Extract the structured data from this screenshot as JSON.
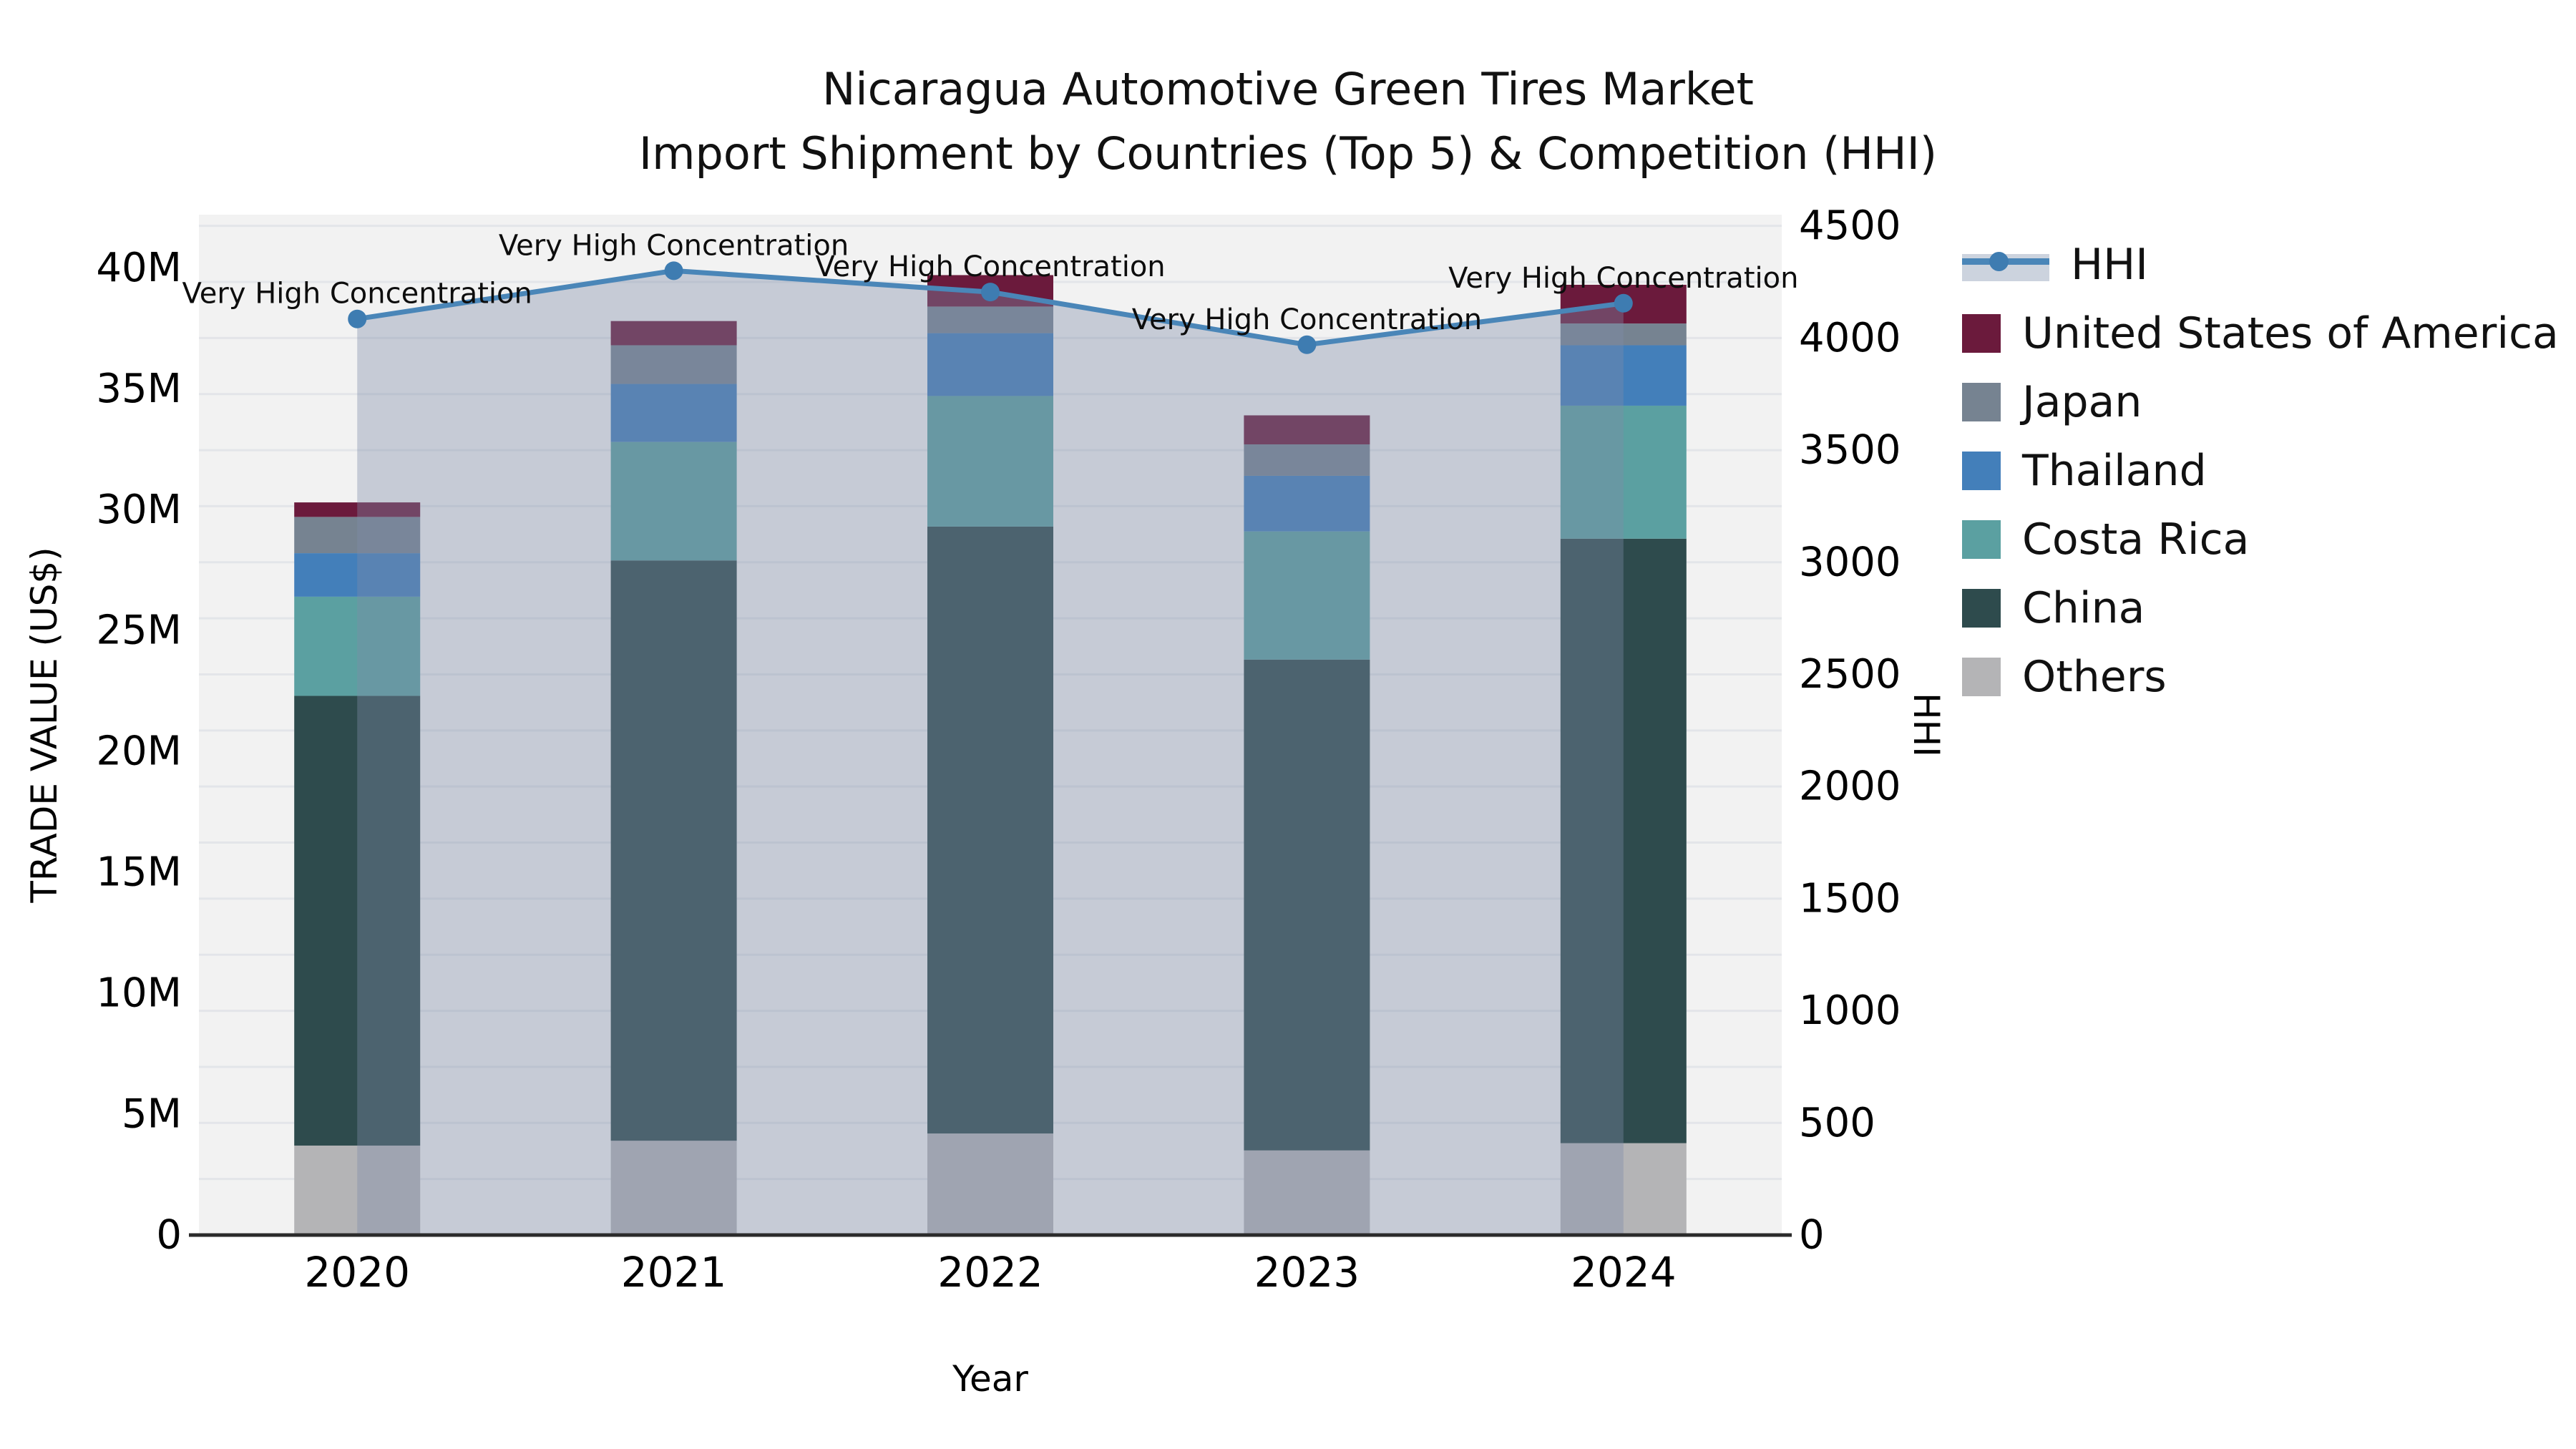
{
  "title": {
    "line1": "Nicaragua Automotive Green Tires Market",
    "line2": "Import Shipment by Countries (Top 5) & Competition (HHI)"
  },
  "chart_data": {
    "type": "combo",
    "subtype": [
      "stacked-bar",
      "line-with-area"
    ],
    "title": "Nicaragua Automotive Green Tires Market Import Shipment by Countries (Top 5) & Competition (HHI)",
    "categories": [
      "2020",
      "2021",
      "2022",
      "2023",
      "2024"
    ],
    "xlabel": "Year",
    "ylabel_left": "TRADE VALUE (US$)",
    "ylabel_right": "HHI",
    "unit_left": "millions of US$",
    "ylim_left": [
      0,
      42.2
    ],
    "ylim_right": [
      0,
      4550
    ],
    "ytick_step_left": 5,
    "ytick_step_right": 500,
    "grid": {
      "axis": "right",
      "interval": 250,
      "on": true
    },
    "legend_position": "right",
    "bar_series": [
      {
        "name": "Others",
        "color": "#b4b4b6",
        "values": [
          3.7,
          3.9,
          4.2,
          3.5,
          3.8
        ]
      },
      {
        "name": "China",
        "color": "#2e4b4d",
        "values": [
          18.6,
          24.0,
          25.1,
          20.3,
          25.0
        ]
      },
      {
        "name": "Costa Rica",
        "color": "#5ba0a1",
        "values": [
          4.1,
          4.9,
          5.4,
          5.3,
          5.5
        ]
      },
      {
        "name": "Thailand",
        "color": "#437fba",
        "values": [
          1.8,
          2.4,
          2.6,
          2.3,
          2.5
        ]
      },
      {
        "name": "Japan",
        "color": "#768391",
        "values": [
          1.5,
          1.6,
          1.1,
          1.3,
          0.9
        ]
      },
      {
        "name": "United States of America",
        "color": "#6b1a3c",
        "values": [
          0.6,
          1.0,
          1.3,
          1.2,
          1.6
        ]
      }
    ],
    "bar_totals": [
      30.3,
      37.8,
      39.7,
      33.9,
      39.3
    ],
    "line_series": {
      "name": "HHI",
      "axis": "right",
      "color": "#4a86b8",
      "marker_color": "#3e7cb1",
      "area_fill": "rgba(125,139,168,0.38)",
      "values": [
        4085,
        4300,
        4205,
        3970,
        4155
      ]
    },
    "annotations": [
      "Very High Concentration",
      "Very High Concentration",
      "Very High Concentration",
      "Very High Concentration",
      "Very High Concentration"
    ]
  },
  "legend": {
    "items": [
      {
        "name": "HHI",
        "type": "line"
      },
      {
        "name": "United States of America",
        "type": "swatch",
        "color": "#6b1a3c"
      },
      {
        "name": "Japan",
        "type": "swatch",
        "color": "#768391"
      },
      {
        "name": "Thailand",
        "type": "swatch",
        "color": "#437fba"
      },
      {
        "name": "Costa Rica",
        "type": "swatch",
        "color": "#5ba0a1"
      },
      {
        "name": "China",
        "type": "swatch",
        "color": "#2e4b4d"
      },
      {
        "name": "Others",
        "type": "swatch",
        "color": "#b4b4b6"
      }
    ]
  },
  "colors": {
    "figure_bg": "#ffffff",
    "plot_bg": "#f2f2f2",
    "gridline": "#e3e5e9",
    "spine": "#2b2b2b",
    "text": "#000000"
  }
}
